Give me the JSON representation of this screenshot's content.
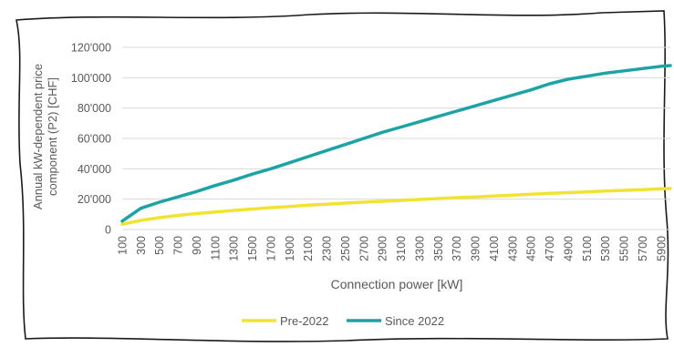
{
  "chart_data": {
    "type": "line",
    "title": "",
    "xlabel": "Connection power [kW]",
    "ylabel_lines": [
      "Annual kW-dependent price",
      "component (P2) [CHF]"
    ],
    "x_tick_labels": [
      "100",
      "300",
      "500",
      "700",
      "900",
      "1100",
      "1300",
      "1500",
      "1700",
      "1900",
      "2100",
      "2300",
      "2500",
      "2700",
      "2900",
      "3100",
      "3300",
      "3500",
      "3700",
      "3900",
      "4100",
      "4300",
      "4500",
      "4700",
      "4900",
      "5100",
      "5300",
      "5500",
      "5700",
      "5900"
    ],
    "xlim": [
      100,
      6000
    ],
    "ylim": [
      0,
      120000
    ],
    "y_ticks": [
      0,
      20000,
      40000,
      60000,
      80000,
      100000,
      120000
    ],
    "y_tick_labels": [
      "0",
      "20'000",
      "40'000",
      "60'000",
      "80'000",
      "100'000",
      "120'000"
    ],
    "grid": "horizontal",
    "legend_position": "bottom",
    "series": [
      {
        "name": "Pre-2022",
        "color": "#f2e332",
        "x": [
          100,
          300,
          500,
          700,
          900,
          1100,
          1300,
          1500,
          1700,
          1900,
          2100,
          2300,
          2500,
          2700,
          2900,
          3100,
          3300,
          3500,
          3700,
          3900,
          4100,
          4300,
          4500,
          4700,
          4900,
          5100,
          5300,
          5500,
          5700,
          5900,
          6000
        ],
        "values": [
          3500,
          6000,
          7800,
          9300,
          10500,
          11600,
          12600,
          13500,
          14400,
          15200,
          16000,
          16700,
          17400,
          18000,
          18600,
          19200,
          19800,
          20400,
          21000,
          21500,
          22000,
          22600,
          23200,
          23800,
          24300,
          24800,
          25300,
          25800,
          26300,
          26800,
          27000
        ]
      },
      {
        "name": "Since 2022",
        "color": "#1ba3a6",
        "x": [
          100,
          300,
          500,
          700,
          900,
          1100,
          1300,
          1500,
          1700,
          1900,
          2100,
          2300,
          2500,
          2700,
          2900,
          3100,
          3300,
          3500,
          3700,
          3900,
          4100,
          4300,
          4500,
          4700,
          4900,
          5100,
          5300,
          5500,
          5700,
          5900,
          6000
        ],
        "values": [
          5500,
          14000,
          18000,
          21500,
          25000,
          29000,
          32500,
          36500,
          40000,
          44000,
          48000,
          52000,
          56000,
          60000,
          64000,
          67500,
          71000,
          74500,
          78000,
          81500,
          85000,
          88500,
          92000,
          96000,
          99000,
          101000,
          103000,
          104500,
          106000,
          107500,
          108000
        ]
      }
    ]
  }
}
